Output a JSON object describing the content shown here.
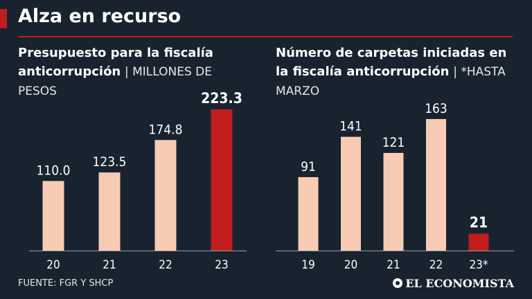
{
  "header": {
    "title": "Alza en recurso"
  },
  "colors": {
    "bar": "#f8cbb4",
    "highlight": "#c11d1d",
    "axis": "#9aa3ad"
  },
  "chart_data": [
    {
      "type": "bar",
      "title_bold": "Presupuesto para la fiscalía anticorrupción",
      "title_light": "| MILLONES DE PESOS",
      "categories": [
        "20",
        "21",
        "22",
        "23"
      ],
      "values": [
        110.0,
        123.5,
        174.8,
        223.3
      ],
      "labels": [
        "110.0",
        "123.5",
        "174.8",
        "223.3"
      ],
      "highlight_index": 3,
      "ylim": [
        0,
        223.3
      ]
    },
    {
      "type": "bar",
      "title_bold": "Número de carpetas iniciadas en la fiscalía anticorrupción",
      "title_light": "| *HASTA MARZO",
      "categories": [
        "19",
        "20",
        "21",
        "22",
        "23*"
      ],
      "values": [
        91,
        141,
        121,
        163,
        21
      ],
      "labels": [
        "91",
        "141",
        "121",
        "163",
        "21"
      ],
      "highlight_index": 4,
      "ylim": [
        0,
        163
      ]
    }
  ],
  "footer": {
    "source": "FUENTE: FGR Y SHCP",
    "brand": "EL ECONOMISTA"
  }
}
